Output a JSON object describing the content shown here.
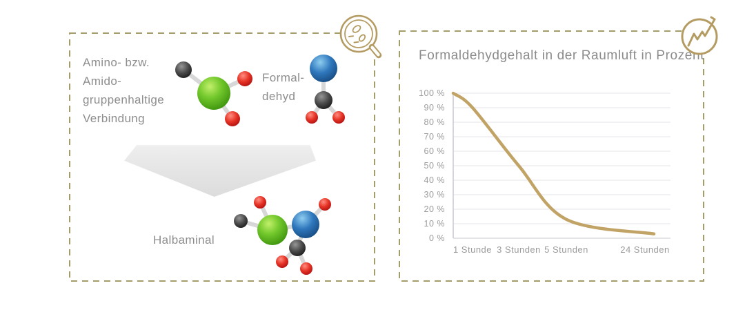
{
  "left_panel": {
    "reactant_label_lines": [
      "Amino- bzw.",
      "Amido-",
      "gruppenhaltige",
      "Verbindung"
    ],
    "formaldehyde_label_lines": [
      "Formal-",
      "dehyd"
    ],
    "product_label": "Halbaminal",
    "molecules": [
      "amino-amido-compound-molecule",
      "formaldehyde-molecule",
      "halbaminal-molecule"
    ],
    "icon": "magnifier-molecules-icon"
  },
  "right_panel": {
    "title": "Formaldehydgehalt in der Raumluft in Prozent",
    "icon": "trend-chart-icon"
  },
  "chart_data": {
    "type": "line",
    "title": "Formaldehydgehalt in der Raumluft in Prozent",
    "xlabel": "",
    "ylabel": "",
    "x_tick_labels": [
      "1 Stunde",
      "3 Stunden",
      "5 Stunden",
      "24 Stunden"
    ],
    "y_tick_labels": [
      "100 %",
      "90 %",
      "80 %",
      "70 %",
      "60 %",
      "50 %",
      "40 %",
      "30 %",
      "20 %",
      "10 %",
      "0 %"
    ],
    "ylim": [
      0,
      100
    ],
    "grid": true,
    "legend": false,
    "series": [
      {
        "name": "Formaldehydgehalt",
        "x_hours": [
          0,
          1,
          3,
          5,
          24
        ],
        "values": [
          100,
          90,
          50,
          13,
          3
        ]
      }
    ],
    "line_color": "#c1a366"
  },
  "colors": {
    "panel_border": "#a59c6b",
    "icon_gold": "#b49b62",
    "text_gray": "#8d8d8d",
    "tick_gray": "#9b9b9b",
    "gridline": "#e5e5ea",
    "axis_line": "#c9c9ce",
    "chart_line": "#c1a366",
    "arrow_gray": "#e5e5e5",
    "atom_green": "#57b31c",
    "atom_red": "#d71c1c",
    "atom_blue": "#2a71b8",
    "atom_black": "#2a2a2a"
  }
}
